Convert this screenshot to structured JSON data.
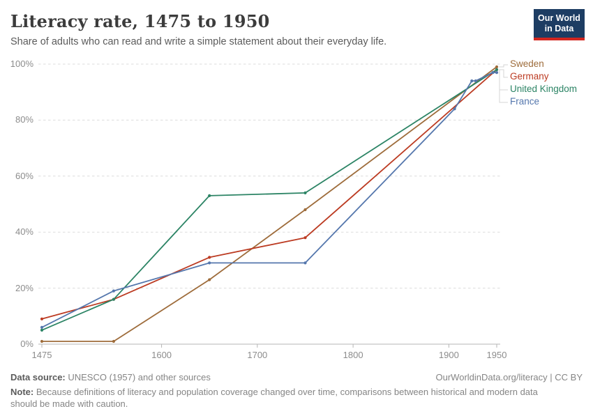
{
  "header": {
    "title": "Literacy rate, 1475 to 1950",
    "subtitle": "Share of adults who can read and write a simple statement about their everyday life.",
    "logo": {
      "line1": "Our World",
      "line2": "in Data"
    }
  },
  "chart_data": {
    "type": "line",
    "title": "Literacy rate, 1475 to 1950",
    "xlabel": "",
    "ylabel": "",
    "xlim": [
      1475,
      1955
    ],
    "ylim": [
      0,
      100
    ],
    "x_ticks": [
      1475,
      1600,
      1700,
      1800,
      1900,
      1950
    ],
    "y_ticks": [
      0,
      20,
      40,
      60,
      80,
      100
    ],
    "y_tick_suffix": "%",
    "grid": "horizontal-dashed",
    "legend_position": "right-of-line-ends",
    "series": [
      {
        "name": "Sweden",
        "color": "#9E6C3B",
        "points": [
          [
            1475,
            1
          ],
          [
            1550,
            1
          ],
          [
            1650,
            23
          ],
          [
            1750,
            48
          ],
          [
            1950,
            99
          ]
        ]
      },
      {
        "name": "Germany",
        "color": "#BC3B22",
        "points": [
          [
            1475,
            9
          ],
          [
            1550,
            16
          ],
          [
            1650,
            31
          ],
          [
            1750,
            38
          ],
          [
            1950,
            98
          ]
        ]
      },
      {
        "name": "United Kingdom",
        "color": "#2C8465",
        "points": [
          [
            1475,
            5
          ],
          [
            1550,
            16
          ],
          [
            1650,
            53
          ],
          [
            1750,
            54
          ],
          [
            1950,
            98
          ]
        ]
      },
      {
        "name": "France",
        "color": "#5577AD",
        "points": [
          [
            1475,
            6
          ],
          [
            1550,
            19
          ],
          [
            1650,
            29
          ],
          [
            1750,
            29
          ],
          [
            1906,
            84
          ],
          [
            1924,
            94
          ],
          [
            1928,
            94
          ],
          [
            1946,
            97
          ],
          [
            1950,
            97
          ]
        ]
      }
    ]
  },
  "footer": {
    "source_label": "Data source:",
    "source_text": " UNESCO (1957) and other sources",
    "rights": "OurWorldinData.org/literacy | CC BY",
    "note_label": "Note:",
    "note_text": " Because definitions of literacy and population coverage changed over time, comparisons between historical and modern data should be made with caution."
  },
  "style": {
    "grid_color": "#DBDBDB",
    "axis_color": "#B5B5B5",
    "connector_color": "#D6D6D6",
    "tick_label_color": "#8C8C8C"
  }
}
